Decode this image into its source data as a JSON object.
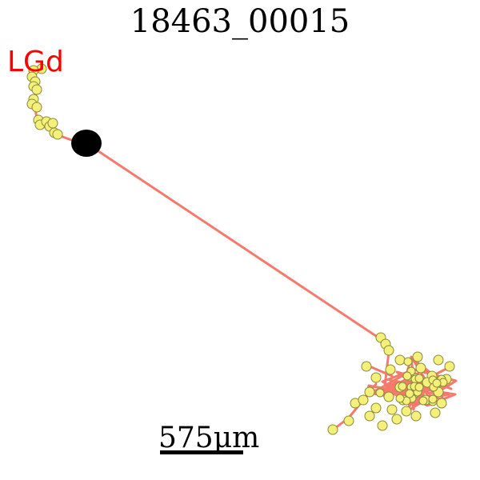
{
  "title": "18463_00015",
  "region_label": "LGd",
  "scale_bar": {
    "label": "575μm"
  },
  "colors": {
    "axon": "#f57a6c",
    "bouton_fill": "#f4f07a",
    "bouton_stroke": "#8a8a3a",
    "soma": "#000000",
    "region_label": "#ff0000"
  }
}
